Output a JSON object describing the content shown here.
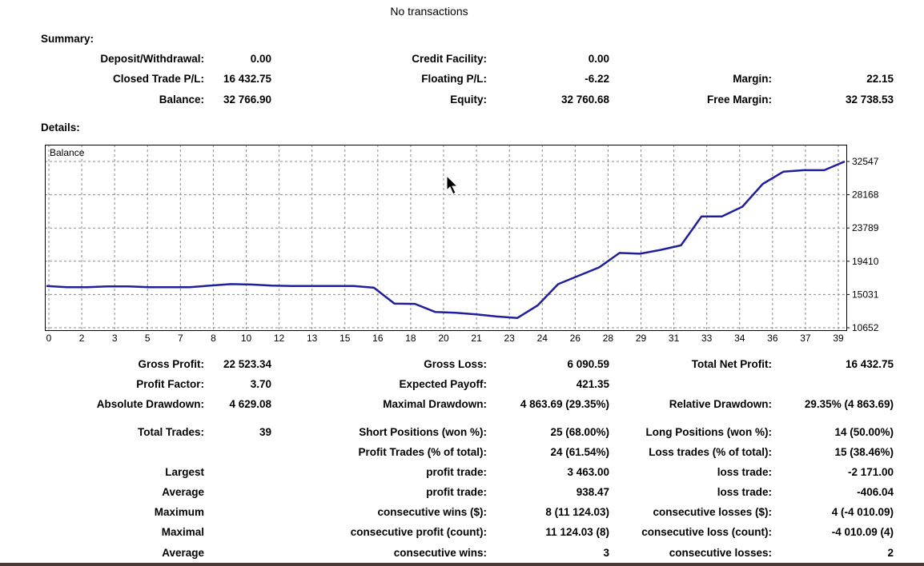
{
  "top_message": "No transactions",
  "summary": {
    "heading": "Summary:",
    "deposit_label": "Deposit/Withdrawal:",
    "deposit_value": "0.00",
    "credit_label": "Credit Facility:",
    "credit_value": "0.00",
    "closed_pl_label": "Closed Trade P/L:",
    "closed_pl_value": "16 432.75",
    "floating_pl_label": "Floating P/L:",
    "floating_pl_value": "-6.22",
    "margin_label": "Margin:",
    "margin_value": "22.15",
    "balance_label": "Balance:",
    "balance_value": "32 766.90",
    "equity_label": "Equity:",
    "equity_value": "32 760.68",
    "free_margin_label": "Free Margin:",
    "free_margin_value": "32 738.53"
  },
  "details": {
    "heading": "Details:"
  },
  "chart_data": {
    "type": "line",
    "title": "Balance",
    "xlabel": "",
    "ylabel": "",
    "x_tick_labels": [
      "0",
      "2",
      "3",
      "5",
      "7",
      "8",
      "10",
      "12",
      "13",
      "15",
      "16",
      "18",
      "20",
      "21",
      "23",
      "24",
      "26",
      "28",
      "29",
      "31",
      "33",
      "34",
      "36",
      "37",
      "39"
    ],
    "y_tick_labels": [
      "32547",
      "28168",
      "23789",
      "19410",
      "15031",
      "10652"
    ],
    "y_ticks": [
      32547,
      28168,
      23789,
      19410,
      15031,
      10652
    ],
    "ylim": [
      10652,
      34800
    ],
    "grid": true,
    "line_color": "#1f1f9e",
    "series": [
      {
        "x": [
          0,
          1,
          2,
          3,
          4,
          5,
          6,
          7,
          8,
          9,
          10,
          11,
          12,
          13,
          14,
          15,
          16,
          17,
          18,
          19,
          20,
          21,
          22,
          23,
          24,
          25,
          26,
          27,
          28,
          29,
          30,
          31,
          32,
          33,
          34,
          35,
          36,
          37,
          38,
          39
        ],
        "values": [
          16150,
          16000,
          15990,
          16100,
          16100,
          16000,
          15990,
          16000,
          16200,
          16400,
          16350,
          16200,
          16150,
          16150,
          16150,
          16150,
          15930,
          13840,
          13800,
          12730,
          12620,
          12420,
          12140,
          11940,
          13600,
          16400,
          17500,
          18600,
          20500,
          20400,
          20900,
          21500,
          25300,
          25300,
          26600,
          29600,
          31200,
          31400,
          31400,
          32547
        ]
      }
    ]
  },
  "stats": {
    "gross_profit_label": "Gross Profit:",
    "gross_profit_value": "22 523.34",
    "gross_loss_label": "Gross Loss:",
    "gross_loss_value": "6 090.59",
    "total_net_label": "Total Net Profit:",
    "total_net_value": "16 432.75",
    "profit_factor_label": "Profit Factor:",
    "profit_factor_value": "3.70",
    "expected_payoff_label": "Expected Payoff:",
    "expected_payoff_value": "421.35",
    "abs_dd_label": "Absolute Drawdown:",
    "abs_dd_value": "4 629.08",
    "max_dd_label": "Maximal Drawdown:",
    "max_dd_value": "4 863.69 (29.35%)",
    "rel_dd_label": "Relative Drawdown:",
    "rel_dd_value": "29.35% (4 863.69)",
    "total_trades_label": "Total Trades:",
    "total_trades_value": "39",
    "short_pos_label": "Short Positions (won %):",
    "short_pos_value": "25 (68.00%)",
    "long_pos_label": "Long Positions (won %):",
    "long_pos_value": "14 (50.00%)",
    "profit_trades_label": "Profit Trades (% of total):",
    "profit_trades_value": "24 (61.54%)",
    "loss_trades_label": "Loss trades (% of total):",
    "loss_trades_value": "15 (38.46%)",
    "rows": [
      {
        "c1": "Largest",
        "c2": "profit trade:",
        "v2": "3 463.00",
        "c3": "loss trade:",
        "v3": "-2 171.00"
      },
      {
        "c1": "Average",
        "c2": "profit trade:",
        "v2": "938.47",
        "c3": "loss trade:",
        "v3": "-406.04"
      },
      {
        "c1": "Maximum",
        "c2": "consecutive wins ($):",
        "v2": "8 (11 124.03)",
        "c3": "consecutive losses ($):",
        "v3": "4 (-4 010.09)"
      },
      {
        "c1": "Maximal",
        "c2": "consecutive profit (count):",
        "v2": "11 124.03 (8)",
        "c3": "consecutive loss (count):",
        "v3": "-4 010.09 (4)"
      },
      {
        "c1": "Average",
        "c2": "consecutive wins:",
        "v2": "3",
        "c3": "consecutive losses:",
        "v3": "2"
      }
    ]
  }
}
